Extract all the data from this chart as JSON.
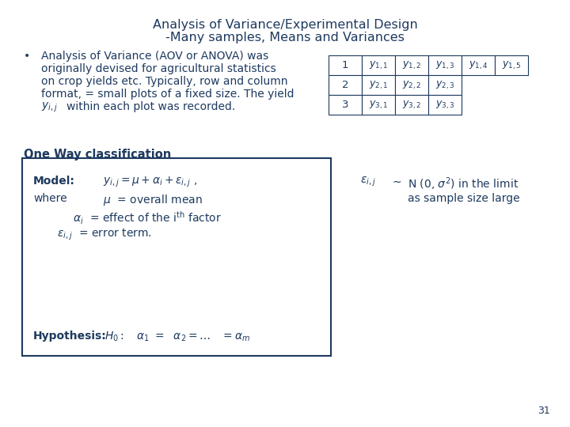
{
  "title_line1": "Analysis of Variance/Experimental Design",
  "title_line2": "-Many samples, Means and Variances",
  "title_color": "#1e3a5f",
  "title_fontsize": 11.5,
  "bg_color": "#ffffff",
  "text_color": "#1e3a5f",
  "one_way_label": "One Way classification",
  "page_num": "31",
  "table_rows": [
    [
      "1",
      "y_{1,1}",
      "y_{1,2}",
      "y_{1,3}",
      "y_{1,4}",
      "y_{1,5}"
    ],
    [
      "2",
      "y_{2,1}",
      "y_{2,2}",
      "y_{2,3}",
      "",
      ""
    ],
    [
      "3",
      "y_{3,1}",
      "y_{3,2}",
      "y_{3,3}",
      "",
      ""
    ]
  ]
}
